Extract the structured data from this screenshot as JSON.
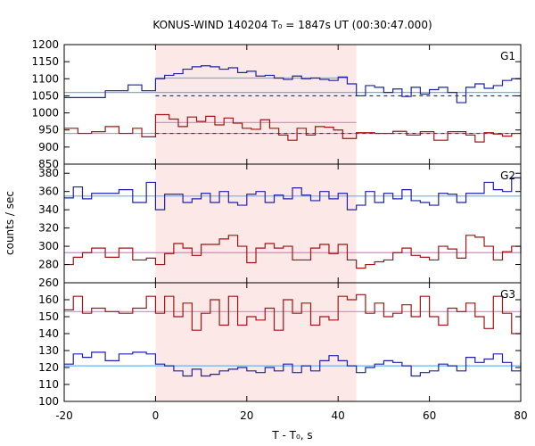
{
  "title": "KONUS-WIND 140204 T₀ = 1847s UT (00:30:47.000)",
  "xlabel": "T - T₀, s",
  "ylabel": "counts / sec",
  "colors": {
    "blue": "#1f22a8",
    "red": "#a11515",
    "fit_blue": "#66b3f0",
    "fit_red": "#e67ad8",
    "shade": "#fde8e8"
  },
  "chart_data": {
    "type": "line",
    "style": "step",
    "x_range": [
      -20,
      80
    ],
    "x_ticks": [
      -20,
      0,
      20,
      40,
      60,
      80
    ],
    "highlight_interval": [
      0,
      44
    ],
    "panels": [
      {
        "label": "G1",
        "ylim": [
          850,
          1200
        ],
        "y_ticks": [
          850,
          900,
          950,
          1000,
          1050,
          1100,
          1150,
          1200
        ],
        "series": [
          {
            "color": "blue",
            "edges": [
              -20,
              -16,
              -11,
              -6,
              -3,
              0,
              2,
              4,
              6,
              8,
              10,
              12,
              14,
              16,
              18,
              20,
              22,
              24,
              26,
              28,
              30,
              32,
              34,
              36,
              38,
              40,
              42,
              44,
              46,
              48,
              50,
              52,
              54,
              56,
              58,
              60,
              62,
              64,
              66,
              68,
              70,
              72,
              74,
              76,
              78,
              80
            ],
            "values": [
              1045,
              1045,
              1065,
              1082,
              1065,
              1100,
              1110,
              1115,
              1128,
              1135,
              1138,
              1135,
              1128,
              1132,
              1118,
              1122,
              1108,
              1110,
              1102,
              1098,
              1108,
              1100,
              1102,
              1098,
              1095,
              1105,
              1085,
              1050,
              1080,
              1075,
              1060,
              1070,
              1048,
              1075,
              1055,
              1068,
              1075,
              1060,
              1030,
              1075,
              1085,
              1072,
              1080,
              1095,
              1100
            ]
          },
          {
            "color": "red",
            "edges": [
              -20,
              -17,
              -14,
              -11,
              -8,
              -5,
              -3,
              0,
              3,
              5,
              7,
              9,
              11,
              13,
              15,
              17,
              19,
              21,
              23,
              25,
              27,
              29,
              31,
              33,
              35,
              37,
              39,
              41,
              44,
              48,
              52,
              55,
              58,
              61,
              64,
              66,
              68,
              70,
              72,
              74,
              76,
              78,
              80
            ],
            "values": [
              955,
              940,
              945,
              960,
              940,
              955,
              930,
              995,
              982,
              960,
              988,
              975,
              990,
              965,
              985,
              970,
              955,
              952,
              980,
              955,
              935,
              920,
              955,
              935,
              960,
              958,
              950,
              925,
              942,
              940,
              946,
              935,
              945,
              920,
              945,
              945,
              935,
              915,
              942,
              938,
              932,
              940,
              945
            ]
          }
        ],
        "fits": [
          {
            "color": "fit_blue",
            "x": [
              -20,
              80
            ],
            "y": 1060
          },
          {
            "color": "fit_blue",
            "x": [
              0,
              42
            ],
            "y": 1102
          },
          {
            "color": "fit_red",
            "x": [
              -20,
              80
            ],
            "y": 940
          },
          {
            "color": "fit_red",
            "x": [
              0,
              44
            ],
            "y": 972
          }
        ],
        "dashed": [
          {
            "color": "blue",
            "x": [
              0,
              80
            ],
            "y": 1050
          },
          {
            "color": "red",
            "x": [
              0,
              80
            ],
            "y": 940
          }
        ]
      },
      {
        "label": "G2",
        "ylim": [
          260,
          390
        ],
        "y_ticks": [
          260,
          280,
          300,
          320,
          340,
          360,
          380
        ],
        "series": [
          {
            "color": "blue",
            "edges": [
              -20,
              -18,
              -16,
              -14,
              -11,
              -8,
              -5,
              -2,
              0,
              2,
              4,
              6,
              8,
              10,
              12,
              14,
              16,
              18,
              20,
              22,
              24,
              26,
              28,
              30,
              32,
              34,
              36,
              38,
              40,
              42,
              44,
              46,
              48,
              50,
              52,
              54,
              56,
              58,
              60,
              62,
              64,
              66,
              68,
              70,
              72,
              74,
              76,
              78,
              80
            ],
            "values": [
              353,
              365,
              352,
              358,
              358,
              362,
              348,
              370,
              340,
              357,
              357,
              348,
              352,
              358,
              348,
              360,
              348,
              345,
              357,
              360,
              348,
              356,
              352,
              364,
              356,
              350,
              360,
              352,
              358,
              340,
              345,
              360,
              348,
              358,
              352,
              362,
              350,
              348,
              345,
              358,
              357,
              348,
              358,
              358,
              370,
              362,
              360,
              375,
              362
            ]
          },
          {
            "color": "red",
            "edges": [
              -20,
              -18,
              -16,
              -14,
              -11,
              -8,
              -5,
              -2,
              0,
              2,
              4,
              6,
              8,
              10,
              12,
              14,
              16,
              18,
              20,
              22,
              24,
              26,
              28,
              30,
              32,
              34,
              36,
              38,
              40,
              42,
              44,
              46,
              48,
              50,
              52,
              54,
              56,
              58,
              60,
              62,
              64,
              66,
              68,
              70,
              72,
              74,
              76,
              78,
              80
            ],
            "values": [
              280,
              288,
              293,
              298,
              288,
              298,
              285,
              287,
              280,
              292,
              303,
              298,
              290,
              302,
              302,
              308,
              312,
              300,
              282,
              298,
              303,
              298,
              300,
              285,
              285,
              298,
              302,
              292,
              302,
              285,
              276,
              280,
              283,
              285,
              293,
              298,
              290,
              288,
              285,
              300,
              297,
              287,
              312,
              310,
              300,
              285,
              294,
              300,
              292
            ]
          }
        ],
        "fits": [
          {
            "color": "fit_blue",
            "x": [
              -20,
              80
            ],
            "y": 355
          },
          {
            "color": "fit_red",
            "x": [
              -20,
              80
            ],
            "y": 293
          }
        ],
        "dashed": []
      },
      {
        "label": "G3",
        "ylim": [
          100,
          170
        ],
        "y_ticks": [
          100,
          110,
          120,
          130,
          140,
          150,
          160
        ],
        "series": [
          {
            "color": "red",
            "edges": [
              -20,
              -18,
              -16,
              -14,
              -11,
              -8,
              -5,
              -2,
              0,
              2,
              4,
              6,
              8,
              10,
              12,
              14,
              16,
              18,
              20,
              22,
              24,
              26,
              28,
              30,
              32,
              34,
              36,
              38,
              40,
              42,
              44,
              46,
              48,
              50,
              52,
              54,
              56,
              58,
              60,
              62,
              64,
              66,
              68,
              70,
              72,
              74,
              76,
              78,
              80
            ],
            "values": [
              154,
              162,
              152,
              155,
              153,
              152,
              155,
              162,
              152,
              162,
              150,
              158,
              142,
              152,
              160,
              145,
              162,
              145,
              150,
              148,
              155,
              142,
              160,
              152,
              158,
              145,
              150,
              148,
              162,
              160,
              163,
              152,
              158,
              150,
              152,
              157,
              150,
              162,
              150,
              145,
              155,
              153,
              158,
              150,
              143,
              162,
              152,
              140,
              155
            ]
          },
          {
            "color": "blue",
            "edges": [
              -20,
              -18,
              -16,
              -14,
              -11,
              -8,
              -5,
              -2,
              0,
              2,
              4,
              6,
              8,
              10,
              12,
              14,
              16,
              18,
              20,
              22,
              24,
              26,
              28,
              30,
              32,
              34,
              36,
              38,
              40,
              42,
              44,
              46,
              48,
              50,
              52,
              54,
              56,
              58,
              60,
              62,
              64,
              66,
              68,
              70,
              72,
              74,
              76,
              78,
              80
            ],
            "values": [
              122,
              128,
              126,
              129,
              124,
              128,
              129,
              128,
              122,
              121,
              118,
              115,
              119,
              115,
              116,
              118,
              119,
              120,
              118,
              117,
              120,
              118,
              122,
              117,
              121,
              118,
              124,
              127,
              124,
              121,
              117,
              120,
              122,
              124,
              123,
              121,
              115,
              117,
              118,
              122,
              121,
              118,
              126,
              123,
              125,
              128,
              123,
              118,
              123
            ]
          }
        ],
        "fits": [
          {
            "color": "fit_red",
            "x": [
              -20,
              80
            ],
            "y": 153
          },
          {
            "color": "fit_blue",
            "x": [
              -20,
              80
            ],
            "y": 121
          }
        ],
        "dashed": []
      }
    ]
  }
}
